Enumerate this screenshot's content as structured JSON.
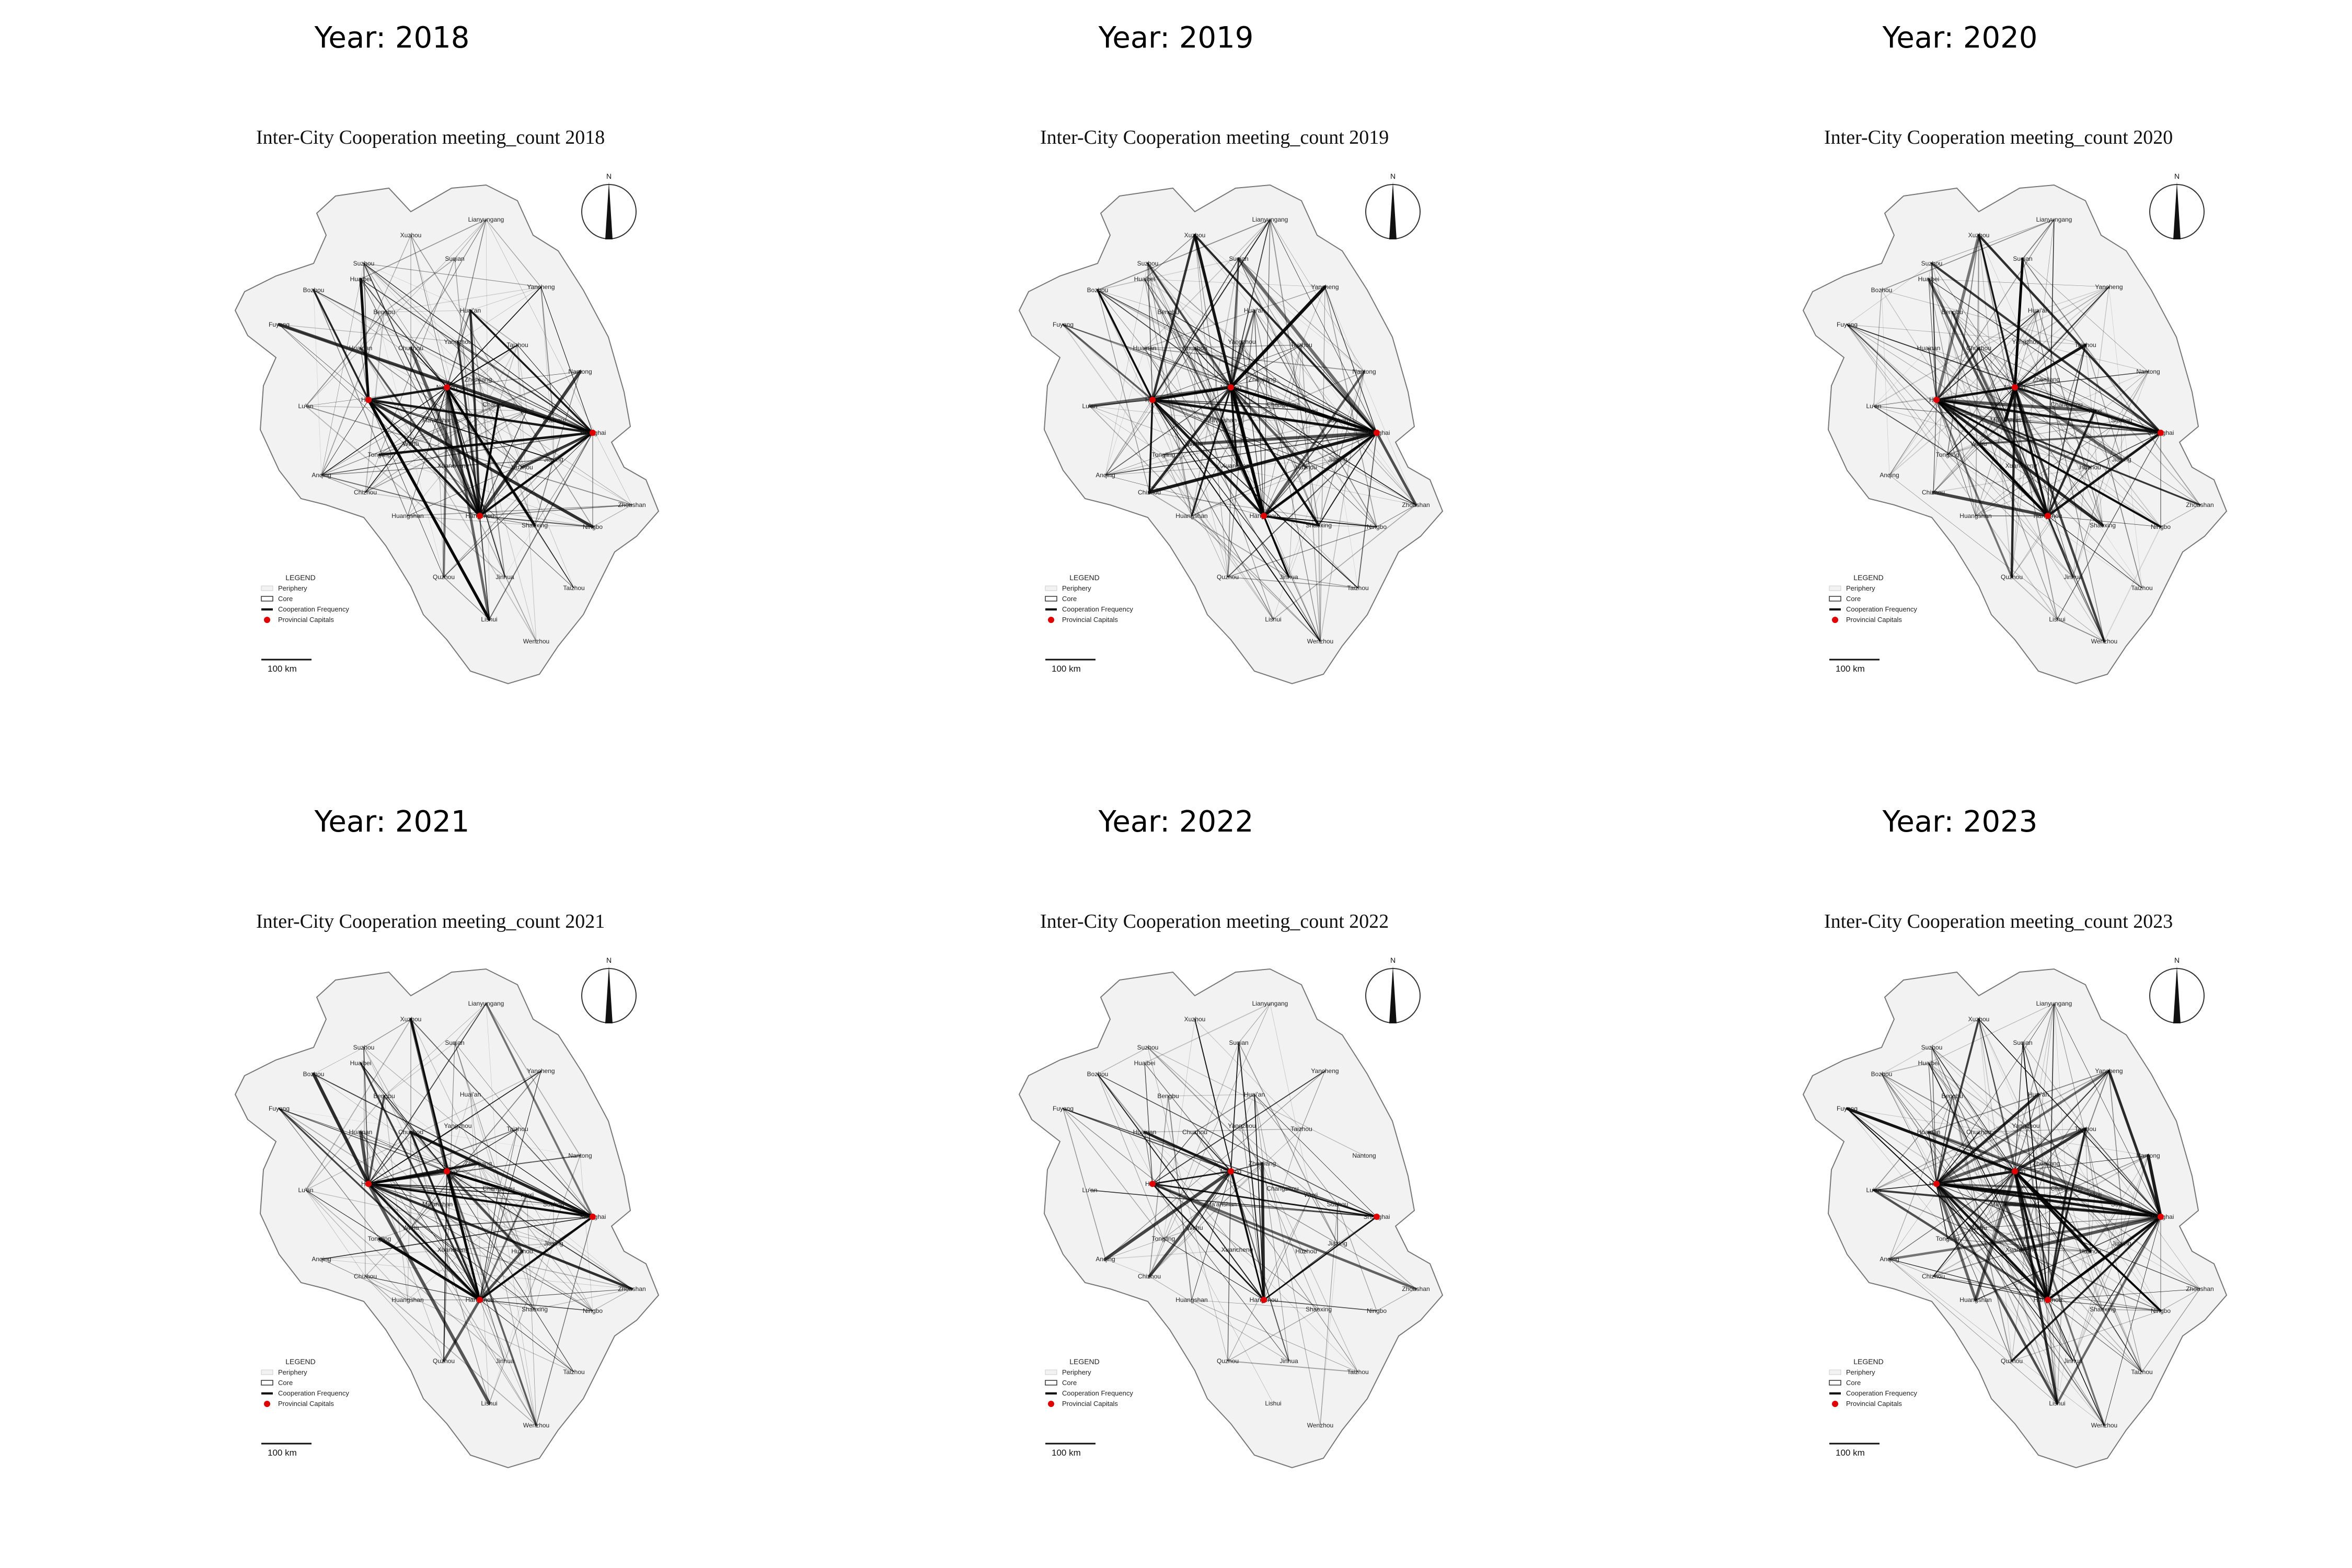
{
  "figure": {
    "panels": [
      {
        "year_label": "Year: 2018",
        "map_title": "Inter-City Cooperation meeting_count 2018"
      },
      {
        "year_label": "Year: 2019",
        "map_title": "Inter-City Cooperation meeting_count 2019"
      },
      {
        "year_label": "Year: 2020",
        "map_title": "Inter-City Cooperation meeting_count 2020"
      },
      {
        "year_label": "Year: 2021",
        "map_title": "Inter-City Cooperation meeting_count 2021"
      },
      {
        "year_label": "Year: 2022",
        "map_title": "Inter-City Cooperation meeting_count 2022"
      },
      {
        "year_label": "Year: 2023",
        "map_title": "Inter-City Cooperation meeting_count 2023"
      }
    ]
  },
  "legend": {
    "title": "LEGEND",
    "periphery": "Periphery",
    "core": "Core",
    "frequency": "Cooperation Frequency",
    "capitals": "Provincial Capitals"
  },
  "north_arrow": {
    "letter": "N"
  },
  "scale_bar": {
    "label": "100 km"
  },
  "cities": [
    "Xuzhou",
    "Lianyungang",
    "Suzhou",
    "Suqian",
    "Huaibei",
    "Bozhou",
    "Yancheng",
    "Huai'an",
    "Bengbu",
    "Fuyang",
    "Huainan",
    "Chuzhou",
    "Yangzhou",
    "Taizhou",
    "Nantong",
    "Hefei",
    "Nanjing",
    "Zhenjiang",
    "Lu'an",
    "Shanghai",
    "Wuxi",
    "Changzhou",
    "Suzhou",
    "Ma'anshan",
    "Wuhu",
    "Tongling",
    "Anqing",
    "Chizhou",
    "Xuancheng",
    "Huzhou",
    "Jiaxing",
    "Hangzhou",
    "Shaoxing",
    "Ningbo",
    "Zhoushan",
    "Huangshan",
    "Jinhua",
    "Quzhou",
    "Taizhou",
    "Lishui",
    "Wenzhou"
  ],
  "colors": {
    "provincial_capital": "#e00000",
    "land": "#f2f2f2",
    "edge": "#000000"
  },
  "capitals": [
    "Hefei",
    "Nanjing",
    "Shanghai",
    "Hangzhou"
  ],
  "year_intensity": [
    0.85,
    1.0,
    0.9,
    0.8,
    0.45,
    0.95
  ]
}
